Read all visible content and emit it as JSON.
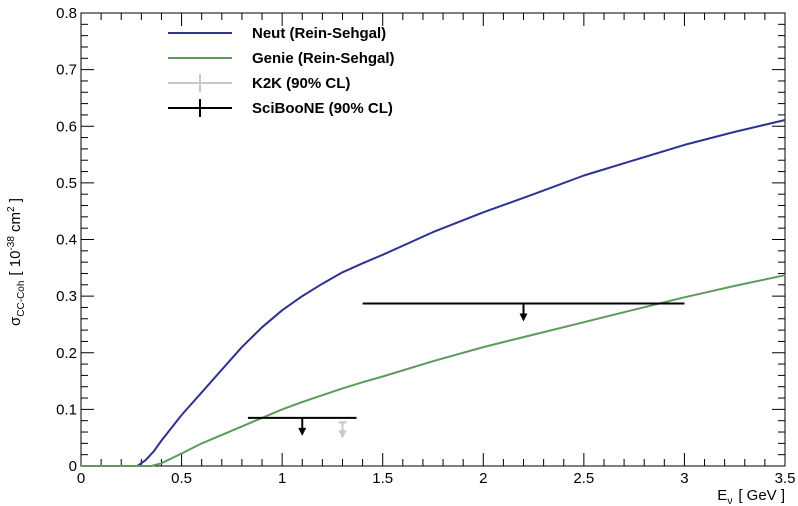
{
  "chart_data": {
    "type": "line",
    "xlabel": {
      "symbol": "E",
      "sub": "ν",
      "unit": "[ GeV ]"
    },
    "ylabel": {
      "symbol": "σ",
      "sub": "CC-Coh",
      "unit_pre": "[ 10",
      "unit_exp": "-38",
      "unit_mid": " cm",
      "unit_exp2": "2",
      "unit_post": " ]"
    },
    "xlim": [
      0,
      3.5
    ],
    "ylim": [
      0,
      0.8
    ],
    "x_ticks": [
      "0",
      "0.5",
      "1",
      "1.5",
      "2",
      "2.5",
      "3",
      "3.5"
    ],
    "y_ticks": [
      "0",
      "0.1",
      "0.2",
      "0.3",
      "0.4",
      "0.5",
      "0.6",
      "0.7",
      "0.8"
    ],
    "grid": false,
    "legend_position": "top-left",
    "series": [
      {
        "name": "Neut (Rein-Sehgal)",
        "color": "#2e3192",
        "x": [
          0,
          0.28,
          0.32,
          0.36,
          0.4,
          0.5,
          0.6,
          0.7,
          0.8,
          0.9,
          1.0,
          1.1,
          1.2,
          1.3,
          1.4,
          1.5,
          1.75,
          2.0,
          2.25,
          2.5,
          2.75,
          3.0,
          3.25,
          3.5
        ],
        "y": [
          0,
          0,
          0.01,
          0.025,
          0.045,
          0.09,
          0.13,
          0.17,
          0.21,
          0.245,
          0.275,
          0.3,
          0.322,
          0.342,
          0.358,
          0.373,
          0.413,
          0.448,
          0.48,
          0.513,
          0.54,
          0.567,
          0.59,
          0.611
        ]
      },
      {
        "name": "Genie (Rein-Sehgal)",
        "color": "#5e9a5b",
        "x": [
          0,
          0.35,
          0.4,
          0.5,
          0.6,
          0.7,
          0.8,
          0.9,
          1.0,
          1.1,
          1.2,
          1.3,
          1.4,
          1.5,
          1.75,
          2.0,
          2.25,
          2.5,
          2.75,
          3.0,
          3.25,
          3.5
        ],
        "y": [
          0,
          0,
          0.005,
          0.022,
          0.04,
          0.055,
          0.07,
          0.085,
          0.1,
          0.113,
          0.125,
          0.137,
          0.148,
          0.158,
          0.185,
          0.21,
          0.232,
          0.254,
          0.276,
          0.298,
          0.318,
          0.337
        ]
      }
    ],
    "upper_limits": [
      {
        "name": "K2K (90% CL)",
        "color": "#c8c8c8",
        "x": 1.3,
        "y": 0.077
      },
      {
        "name": "SciBooNE (90% CL)",
        "color": "#000000",
        "x": 1.1,
        "y": 0.085,
        "x_range": [
          0.83,
          1.37
        ]
      },
      {
        "name": "SciBooNE (90% CL)",
        "color": "#000000",
        "x": 2.2,
        "y": 0.287,
        "x_range": [
          1.4,
          3.0
        ]
      }
    ],
    "legend": [
      {
        "label": "Neut (Rein-Sehgal)",
        "kind": "line",
        "color": "#2e3192"
      },
      {
        "label": "Genie (Rein-Sehgal)",
        "kind": "line",
        "color": "#5e9a5b"
      },
      {
        "label": "K2K (90% CL)",
        "kind": "marker",
        "color": "#c8c8c8"
      },
      {
        "label": "SciBooNE (90% CL)",
        "kind": "marker",
        "color": "#000000"
      }
    ]
  }
}
